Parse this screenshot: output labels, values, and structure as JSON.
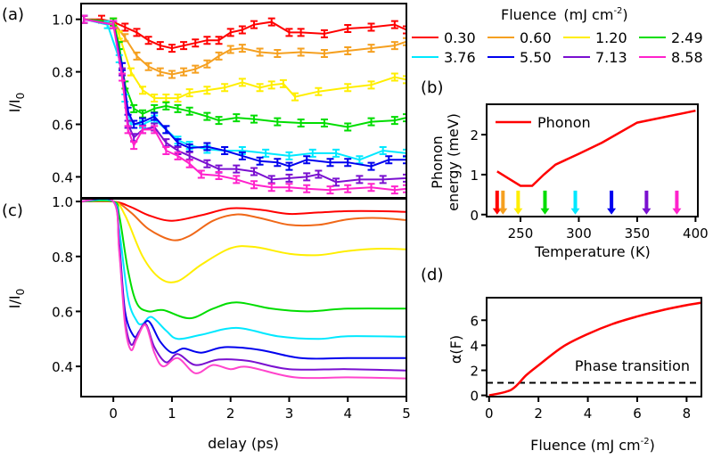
{
  "legend": {
    "title": "Fluence",
    "unit": "(mJ cm",
    "unit_sup": "-2",
    "unit_close": ")",
    "entries": [
      "0.30",
      "0.60",
      "1.20",
      "2.49",
      "3.76",
      "5.50",
      "7.13",
      "8.58"
    ]
  },
  "colors": [
    "#ff0000",
    "#f5a020",
    "#ffee00",
    "#00dd00",
    "#00e8ff",
    "#0000ee",
    "#7a10d0",
    "#ff22cc"
  ],
  "colors_fit": [
    "#ff0000",
    "#f06818",
    "#ffee00",
    "#00dd00",
    "#00e8ff",
    "#0000ee",
    "#7a10d0",
    "#ff44cc"
  ],
  "chart_data": [
    {
      "panel": "(a)",
      "type": "line",
      "ylabel": "I/I",
      "ylabel_sub": "0",
      "xlim": [
        -0.55,
        5
      ],
      "ylim": [
        0.32,
        1.06
      ],
      "yticks": [
        "1.0",
        "0.8",
        "0.6",
        "0.4"
      ],
      "ytick_values": [
        1.0,
        0.8,
        0.6,
        0.4
      ],
      "error_bars": true,
      "series": [
        {
          "name": "0.30",
          "x": [
            -0.5,
            -0.2,
            0,
            0.2,
            0.4,
            0.6,
            0.8,
            1.0,
            1.2,
            1.4,
            1.6,
            1.8,
            2.0,
            2.2,
            2.4,
            2.7,
            3.0,
            3.2,
            3.6,
            4.0,
            4.4,
            4.8,
            5.0
          ],
          "y": [
            1.0,
            1.0,
            0.99,
            0.97,
            0.95,
            0.92,
            0.9,
            0.89,
            0.9,
            0.91,
            0.92,
            0.92,
            0.95,
            0.96,
            0.98,
            0.99,
            0.95,
            0.95,
            0.945,
            0.965,
            0.97,
            0.98,
            0.96
          ]
        },
        {
          "name": "0.60",
          "x": [
            -0.5,
            0,
            0.2,
            0.4,
            0.6,
            0.8,
            1.0,
            1.2,
            1.4,
            1.6,
            1.8,
            2.0,
            2.2,
            2.5,
            2.8,
            3.2,
            3.6,
            4.0,
            4.4,
            4.8,
            5.0
          ],
          "y": [
            1.0,
            0.99,
            0.93,
            0.86,
            0.82,
            0.8,
            0.79,
            0.8,
            0.81,
            0.83,
            0.86,
            0.885,
            0.89,
            0.875,
            0.87,
            0.875,
            0.87,
            0.88,
            0.89,
            0.9,
            0.915
          ]
        },
        {
          "name": "1.20",
          "x": [
            -0.5,
            0,
            0.1,
            0.3,
            0.5,
            0.7,
            0.9,
            1.1,
            1.3,
            1.6,
            1.9,
            2.2,
            2.5,
            2.7,
            2.9,
            3.1,
            3.5,
            4.0,
            4.4,
            4.8,
            5.0
          ],
          "y": [
            1.0,
            0.99,
            0.94,
            0.8,
            0.73,
            0.7,
            0.7,
            0.7,
            0.72,
            0.73,
            0.74,
            0.76,
            0.74,
            0.75,
            0.755,
            0.705,
            0.725,
            0.74,
            0.75,
            0.78,
            0.77
          ]
        },
        {
          "name": "2.49",
          "x": [
            -0.5,
            0,
            0.1,
            0.2,
            0.35,
            0.5,
            0.7,
            0.9,
            1.1,
            1.3,
            1.6,
            1.8,
            2.1,
            2.4,
            2.8,
            3.2,
            3.6,
            4.0,
            4.4,
            4.8,
            5.0
          ],
          "y": [
            1.0,
            0.99,
            0.9,
            0.75,
            0.66,
            0.64,
            0.66,
            0.67,
            0.66,
            0.65,
            0.63,
            0.615,
            0.625,
            0.62,
            0.61,
            0.605,
            0.605,
            0.59,
            0.61,
            0.615,
            0.625
          ]
        },
        {
          "name": "3.76",
          "x": [
            -0.5,
            -0.1,
            0.1,
            0.2,
            0.3,
            0.5,
            0.7,
            0.9,
            1.1,
            1.3,
            1.6,
            1.9,
            2.2,
            2.6,
            3.0,
            3.4,
            3.8,
            4.2,
            4.6,
            5.0
          ],
          "y": [
            1.0,
            0.98,
            0.85,
            0.7,
            0.6,
            0.6,
            0.62,
            0.58,
            0.54,
            0.52,
            0.505,
            0.5,
            0.5,
            0.49,
            0.48,
            0.49,
            0.49,
            0.465,
            0.5,
            0.49
          ]
        },
        {
          "name": "5.50",
          "x": [
            -0.5,
            0,
            0.15,
            0.25,
            0.35,
            0.5,
            0.7,
            0.9,
            1.1,
            1.3,
            1.6,
            1.9,
            2.2,
            2.5,
            2.8,
            3.0,
            3.3,
            3.7,
            4.0,
            4.4,
            4.7,
            5.0
          ],
          "y": [
            1.0,
            0.98,
            0.82,
            0.65,
            0.6,
            0.61,
            0.63,
            0.58,
            0.53,
            0.51,
            0.515,
            0.5,
            0.48,
            0.46,
            0.455,
            0.44,
            0.465,
            0.455,
            0.455,
            0.44,
            0.465,
            0.465
          ]
        },
        {
          "name": "7.13",
          "x": [
            -0.5,
            0,
            0.15,
            0.25,
            0.35,
            0.5,
            0.7,
            0.9,
            1.1,
            1.3,
            1.6,
            1.8,
            2.1,
            2.4,
            2.7,
            3.0,
            3.3,
            3.5,
            3.8,
            4.2,
            4.6,
            5.0
          ],
          "y": [
            1.0,
            0.98,
            0.8,
            0.6,
            0.55,
            0.58,
            0.59,
            0.53,
            0.5,
            0.48,
            0.45,
            0.43,
            0.43,
            0.42,
            0.39,
            0.395,
            0.4,
            0.41,
            0.38,
            0.39,
            0.39,
            0.395
          ]
        },
        {
          "name": "8.58",
          "x": [
            -0.5,
            0,
            0.15,
            0.25,
            0.35,
            0.5,
            0.7,
            0.9,
            1.1,
            1.3,
            1.5,
            1.8,
            2.1,
            2.4,
            2.7,
            3.0,
            3.3,
            3.7,
            4.0,
            4.4,
            4.8,
            5.0
          ],
          "y": [
            1.0,
            0.98,
            0.78,
            0.58,
            0.52,
            0.58,
            0.58,
            0.5,
            0.48,
            0.45,
            0.41,
            0.405,
            0.39,
            0.37,
            0.36,
            0.36,
            0.355,
            0.35,
            0.355,
            0.36,
            0.35,
            0.355
          ]
        }
      ]
    },
    {
      "panel": "(c)",
      "type": "line",
      "xlabel": "delay (ps)",
      "ylabel": "I/I",
      "ylabel_sub": "0",
      "xlim": [
        -0.55,
        5
      ],
      "ylim": [
        0.29,
        1.01
      ],
      "xticks": [
        "0",
        "1",
        "2",
        "3",
        "4",
        "5"
      ],
      "xtick_values": [
        0,
        1,
        2,
        3,
        4,
        5
      ],
      "yticks": [
        "1.0",
        "0.8",
        "0.6",
        "0.4"
      ],
      "ytick_values": [
        1.0,
        0.8,
        0.6,
        0.4
      ],
      "series": [
        {
          "name": "0.30",
          "x": [
            -0.55,
            0,
            0.3,
            0.6,
            1,
            1.5,
            2,
            2.5,
            3,
            3.5,
            4,
            4.5,
            5
          ],
          "y": [
            1,
            1,
            0.98,
            0.95,
            0.93,
            0.95,
            0.975,
            0.97,
            0.955,
            0.96,
            0.965,
            0.965,
            0.962
          ]
        },
        {
          "name": "0.60",
          "x": [
            -0.55,
            0,
            0.3,
            0.6,
            1,
            1.3,
            1.7,
            2.1,
            2.5,
            3,
            3.5,
            4,
            4.5,
            5
          ],
          "y": [
            1,
            1,
            0.96,
            0.9,
            0.86,
            0.875,
            0.93,
            0.953,
            0.94,
            0.915,
            0.915,
            0.935,
            0.94,
            0.932
          ]
        },
        {
          "name": "1.20",
          "x": [
            -0.55,
            0,
            0.2,
            0.5,
            0.8,
            1.1,
            1.5,
            2,
            2.4,
            3,
            3.5,
            4,
            4.5,
            5
          ],
          "y": [
            1,
            1,
            0.95,
            0.8,
            0.72,
            0.71,
            0.77,
            0.83,
            0.835,
            0.81,
            0.805,
            0.82,
            0.828,
            0.826
          ]
        },
        {
          "name": "2.49",
          "x": [
            -0.55,
            0,
            0.1,
            0.25,
            0.4,
            0.6,
            0.85,
            1.3,
            1.7,
            2.1,
            2.7,
            3.3,
            4,
            5
          ],
          "y": [
            1,
            1,
            0.95,
            0.75,
            0.63,
            0.6,
            0.605,
            0.575,
            0.61,
            0.633,
            0.61,
            0.6,
            0.61,
            0.61
          ]
        },
        {
          "name": "3.76",
          "x": [
            -0.55,
            0,
            0.1,
            0.25,
            0.4,
            0.5,
            0.65,
            0.9,
            1.1,
            1.5,
            2.1,
            2.8,
            3.5,
            4,
            5
          ],
          "y": [
            1,
            1,
            0.9,
            0.65,
            0.565,
            0.555,
            0.58,
            0.53,
            0.5,
            0.515,
            0.54,
            0.51,
            0.5,
            0.51,
            0.508
          ]
        },
        {
          "name": "5.50",
          "x": [
            -0.55,
            0,
            0.1,
            0.2,
            0.35,
            0.45,
            0.6,
            0.8,
            1,
            1.2,
            1.5,
            1.9,
            2.5,
            3.2,
            4,
            5
          ],
          "y": [
            1,
            1,
            0.85,
            0.6,
            0.51,
            0.53,
            0.565,
            0.49,
            0.45,
            0.465,
            0.45,
            0.47,
            0.46,
            0.43,
            0.43,
            0.43
          ]
        },
        {
          "name": "7.13",
          "x": [
            -0.55,
            0,
            0.1,
            0.2,
            0.3,
            0.4,
            0.55,
            0.7,
            0.9,
            1.1,
            1.4,
            1.8,
            2.3,
            3,
            4,
            5
          ],
          "y": [
            1,
            1,
            0.83,
            0.57,
            0.48,
            0.51,
            0.555,
            0.47,
            0.415,
            0.445,
            0.405,
            0.425,
            0.42,
            0.39,
            0.39,
            0.385
          ]
        },
        {
          "name": "8.58",
          "x": [
            -0.55,
            0,
            0.1,
            0.2,
            0.3,
            0.4,
            0.55,
            0.7,
            0.85,
            1.1,
            1.4,
            1.7,
            2,
            2.3,
            3.1,
            4,
            5
          ],
          "y": [
            1,
            1,
            0.82,
            0.55,
            0.46,
            0.5,
            0.55,
            0.45,
            0.4,
            0.43,
            0.375,
            0.405,
            0.39,
            0.398,
            0.36,
            0.36,
            0.356
          ]
        }
      ]
    },
    {
      "panel": "(b)",
      "type": "line",
      "xlabel": "Temperature (K)",
      "ylabel_line1": "Phonon",
      "ylabel_line2": "energy (meV)",
      "xlim": [
        221,
        402
      ],
      "ylim": [
        -0.05,
        2.76
      ],
      "xticks": [
        "250",
        "300",
        "350",
        "400"
      ],
      "xtick_values": [
        250,
        300,
        350,
        400
      ],
      "yticks": [
        "2",
        "1",
        "0"
      ],
      "ytick_values": [
        2,
        1,
        0
      ],
      "legend": "Phonon",
      "series": [
        {
          "name": "Phonon",
          "x": [
            230,
            240,
            250,
            260,
            270,
            280,
            300,
            320,
            350,
            400
          ],
          "y": [
            1.08,
            0.9,
            0.72,
            0.72,
            1.0,
            1.25,
            1.52,
            1.8,
            2.3,
            2.6
          ]
        }
      ],
      "arrow_temperatures": [
        230,
        235,
        248,
        271,
        297,
        328,
        358,
        384
      ]
    },
    {
      "panel": "(d)",
      "type": "line",
      "xlabel": "Fluence (mJ cm",
      "xlabel_sup": "-2",
      "xlabel_close": ")",
      "ylabel": "α(F)",
      "xlim": [
        -0.1,
        8.6
      ],
      "ylim": [
        -0.1,
        7.8
      ],
      "xticks": [
        "0",
        "2",
        "4",
        "6",
        "8"
      ],
      "xtick_values": [
        0,
        2,
        4,
        6,
        8
      ],
      "yticks": [
        "6",
        "4",
        "2",
        "0"
      ],
      "ytick_values": [
        6,
        4,
        2,
        0
      ],
      "series": [
        {
          "x": [
            0,
            0.9,
            1.5,
            2,
            3,
            4,
            5,
            6,
            7,
            8,
            8.6
          ],
          "y": [
            0,
            0.45,
            1.6,
            2.4,
            3.9,
            4.9,
            5.7,
            6.3,
            6.8,
            7.2,
            7.4
          ]
        }
      ],
      "threshold": {
        "y": 1.0,
        "label": "Phase transition"
      }
    }
  ]
}
